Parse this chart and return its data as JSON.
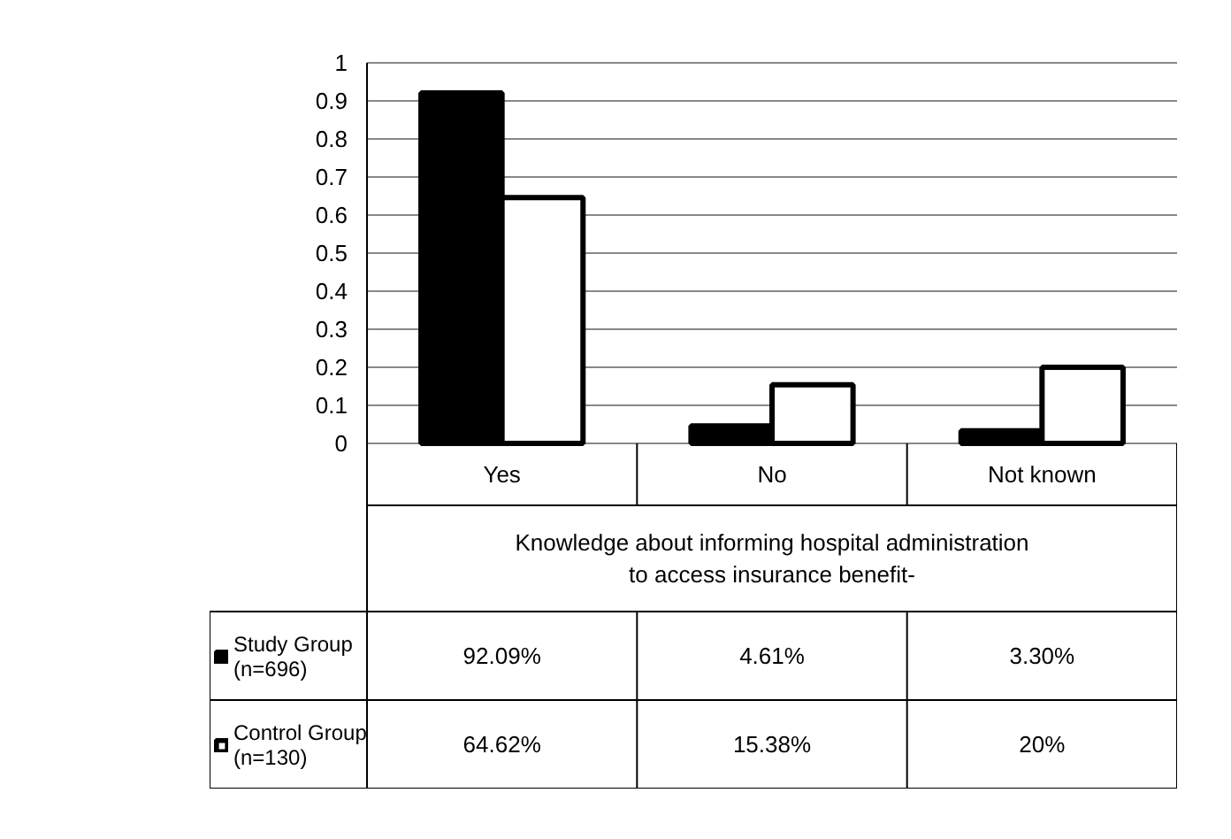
{
  "chart_data": {
    "type": "bar",
    "categories": [
      "Yes",
      "No",
      "Not known"
    ],
    "xlabel": "Knowledge about informing hospital administration\nto access insurance benefit-",
    "series": [
      {
        "name": "Study Group\n(n=696)",
        "color": "#000000",
        "values": [
          0.9209,
          0.0461,
          0.033
        ],
        "value_labels": [
          "92.09%",
          "4.61%",
          "3.30%"
        ]
      },
      {
        "name": "Control Group\n(n=130)",
        "color": "#ffffff",
        "values": [
          0.6462,
          0.1538,
          0.2
        ],
        "value_labels": [
          "64.62%",
          "15.38%",
          "20%"
        ]
      }
    ],
    "ylim": [
      0,
      1
    ],
    "yticks": [
      0,
      0.1,
      0.2,
      0.3,
      0.4,
      0.5,
      0.6,
      0.7,
      0.8,
      0.9,
      1
    ],
    "grid": "y",
    "legend": "bottom left"
  }
}
